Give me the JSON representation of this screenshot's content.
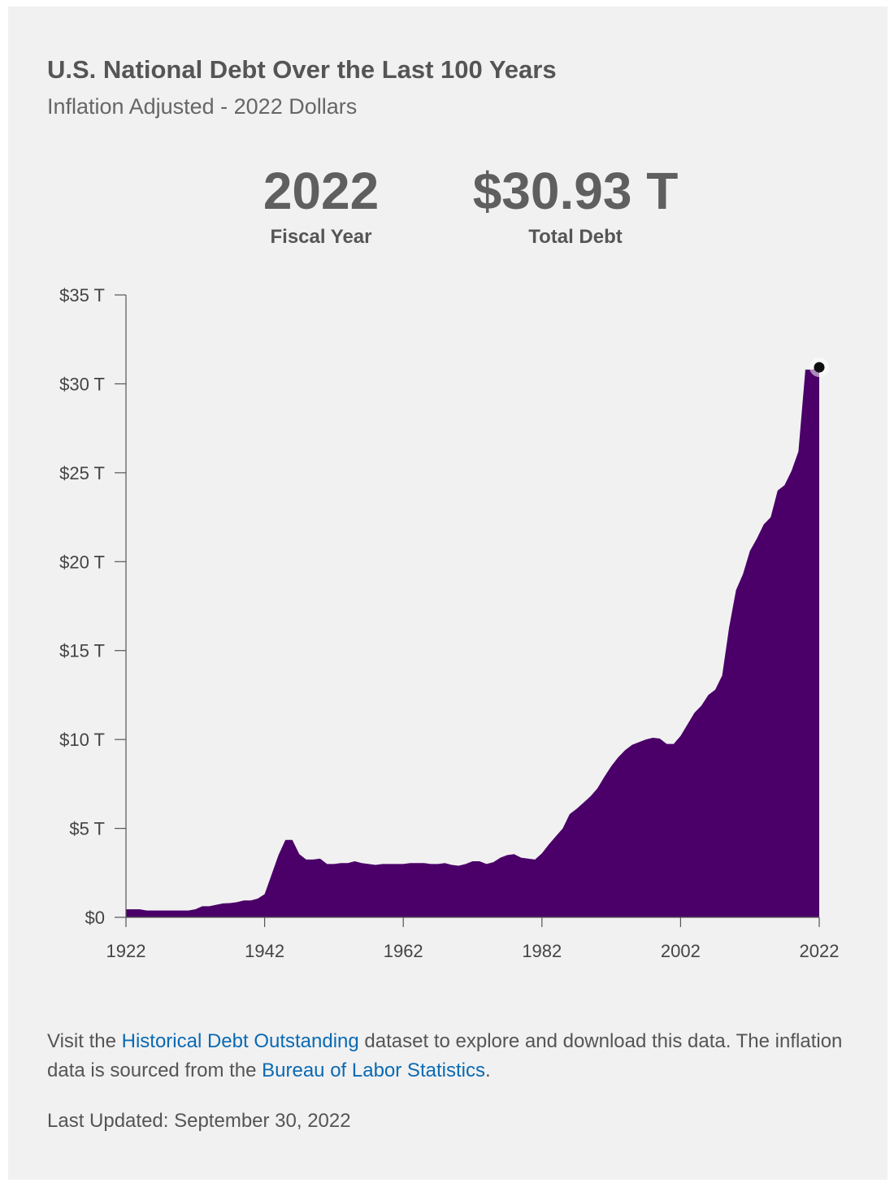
{
  "header": {
    "title": "U.S. National Debt Over the Last 100 Years",
    "subtitle": "Inflation Adjusted - 2022 Dollars"
  },
  "stats": {
    "year_value": "2022",
    "year_label": "Fiscal Year",
    "debt_value": "$30.93 T",
    "debt_label": "Total Debt"
  },
  "footer": {
    "text_1": "Visit the ",
    "link_1": "Historical Debt Outstanding",
    "text_2": " dataset to explore and download this data. The inflation data is sourced from the ",
    "link_2": "Bureau of Labor Statistics",
    "text_3": ".",
    "last_updated": "Last Updated: September 30, 2022"
  },
  "colors": {
    "fill": "#4a0068",
    "axis": "#555555",
    "link": "#0a6ab3"
  },
  "chart_data": {
    "type": "area",
    "xlabel": "",
    "ylabel": "",
    "xlim": [
      1922,
      2022
    ],
    "ylim": [
      0,
      35
    ],
    "x_ticks": [
      1922,
      1942,
      1962,
      1982,
      2002,
      2022
    ],
    "y_ticks": [
      {
        "value": 0,
        "label": "$0"
      },
      {
        "value": 5,
        "label": "$5 T"
      },
      {
        "value": 10,
        "label": "$10 T"
      },
      {
        "value": 15,
        "label": "$15 T"
      },
      {
        "value": 20,
        "label": "$20 T"
      },
      {
        "value": 25,
        "label": "$25 T"
      },
      {
        "value": 30,
        "label": "$30 T"
      },
      {
        "value": 35,
        "label": "$35 T"
      }
    ],
    "highlight": {
      "x": 2022,
      "y": 30.93
    },
    "x": [
      1922,
      1923,
      1924,
      1925,
      1926,
      1927,
      1928,
      1929,
      1930,
      1931,
      1932,
      1933,
      1934,
      1935,
      1936,
      1937,
      1938,
      1939,
      1940,
      1941,
      1942,
      1943,
      1944,
      1945,
      1946,
      1947,
      1948,
      1949,
      1950,
      1951,
      1952,
      1953,
      1954,
      1955,
      1956,
      1957,
      1958,
      1959,
      1960,
      1961,
      1962,
      1963,
      1964,
      1965,
      1966,
      1967,
      1968,
      1969,
      1970,
      1971,
      1972,
      1973,
      1974,
      1975,
      1976,
      1977,
      1978,
      1979,
      1980,
      1981,
      1982,
      1983,
      1984,
      1985,
      1986,
      1987,
      1988,
      1989,
      1990,
      1991,
      1992,
      1993,
      1994,
      1995,
      1996,
      1997,
      1998,
      1999,
      2000,
      2001,
      2002,
      2003,
      2004,
      2005,
      2006,
      2007,
      2008,
      2009,
      2010,
      2011,
      2012,
      2013,
      2014,
      2015,
      2016,
      2017,
      2018,
      2019,
      2020,
      2021,
      2022
    ],
    "values": [
      0.45,
      0.45,
      0.45,
      0.38,
      0.38,
      0.38,
      0.38,
      0.38,
      0.38,
      0.38,
      0.45,
      0.62,
      0.62,
      0.7,
      0.78,
      0.8,
      0.85,
      0.95,
      0.95,
      1.05,
      1.3,
      2.4,
      3.5,
      4.35,
      4.35,
      3.55,
      3.25,
      3.25,
      3.3,
      3.0,
      3.0,
      3.05,
      3.05,
      3.15,
      3.05,
      3.0,
      2.95,
      3.0,
      3.0,
      3.0,
      3.0,
      3.05,
      3.05,
      3.05,
      3.0,
      3.0,
      3.05,
      2.95,
      2.9,
      3.0,
      3.15,
      3.15,
      3.0,
      3.1,
      3.35,
      3.5,
      3.55,
      3.35,
      3.3,
      3.25,
      3.6,
      4.1,
      4.55,
      5.0,
      5.8,
      6.1,
      6.45,
      6.8,
      7.25,
      7.9,
      8.5,
      9.0,
      9.4,
      9.7,
      9.85,
      10.0,
      10.1,
      10.05,
      9.75,
      9.75,
      10.2,
      10.85,
      11.5,
      11.9,
      12.5,
      12.8,
      13.6,
      16.3,
      18.4,
      19.3,
      20.6,
      21.3,
      22.1,
      22.5,
      24.0,
      24.3,
      25.1,
      26.2,
      30.8,
      30.8,
      30.93
    ]
  }
}
